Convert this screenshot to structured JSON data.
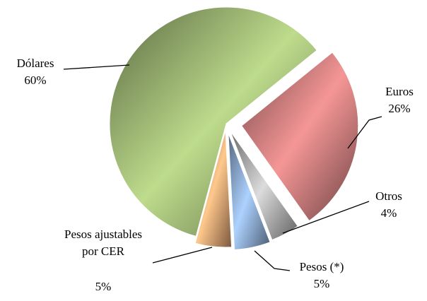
{
  "chart_data": {
    "type": "pie",
    "categories": [
      "Euros",
      "Otros",
      "Pesos (*)",
      "Pesos ajustables por CER",
      "Dólares"
    ],
    "values": [
      26,
      4,
      5,
      5,
      60
    ],
    "value_labels": [
      "26%",
      "4%",
      "5%",
      "5%",
      "60%"
    ],
    "colors": [
      "#c47878",
      "#b0b0b0",
      "#8aa8d0",
      "#e0a070",
      "#98b070"
    ]
  }
}
